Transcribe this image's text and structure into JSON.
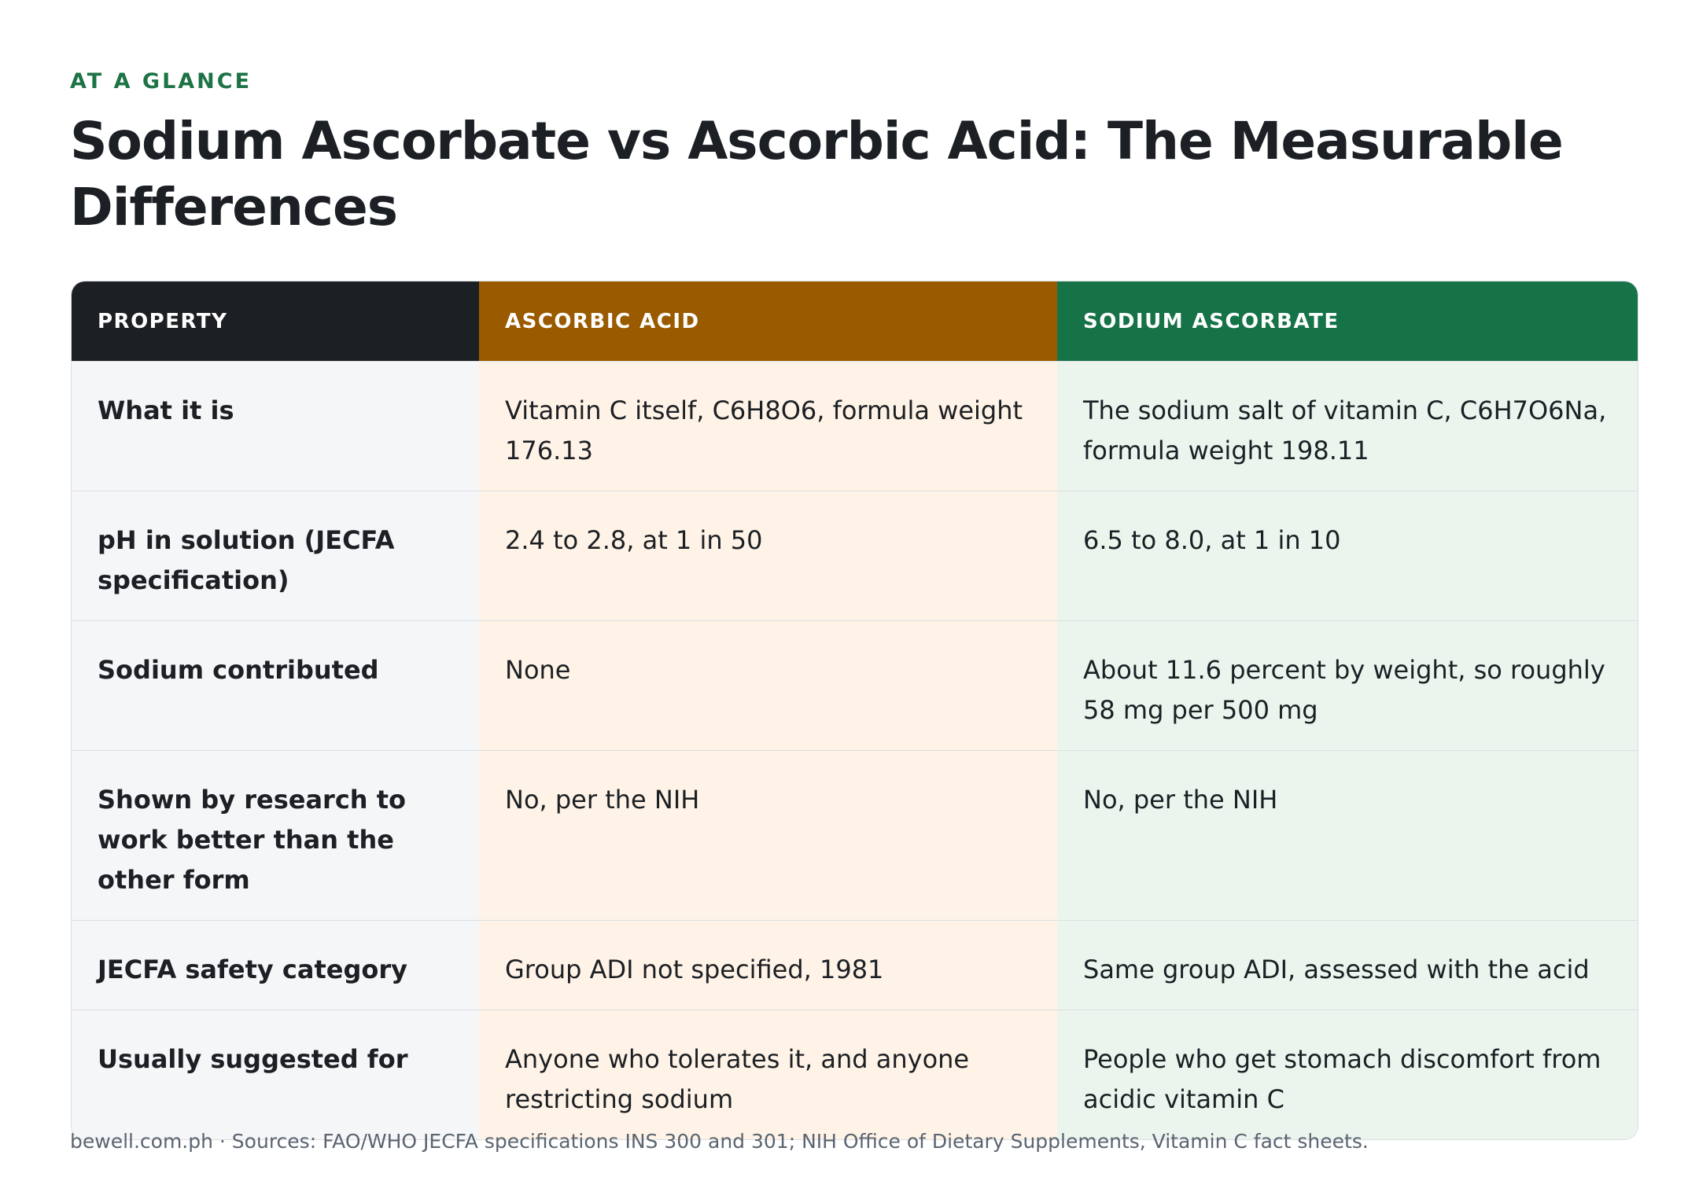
{
  "header": {
    "eyebrow": "AT A GLANCE",
    "title": "Sodium Ascorbate vs Ascorbic Acid: The Measurable Differences"
  },
  "table": {
    "columns": [
      "PROPERTY",
      "ASCORBIC ACID",
      "SODIUM ASCORBATE"
    ],
    "rows": [
      [
        "What it is",
        "Vitamin C itself, C6H8O6, formula weight 176.13",
        "The sodium salt of vitamin C, C6H7O6Na, formula weight 198.11"
      ],
      [
        "pH in solution (JECFA specification)",
        "2.4 to 2.8, at 1 in 50",
        "6.5 to 8.0, at 1 in 10"
      ],
      [
        "Sodium contributed",
        "None",
        "About 11.6 percent by weight, so roughly 58 mg per 500 mg"
      ],
      [
        "Shown by research to work better than the other form",
        "No, per the NIH",
        "No, per the NIH"
      ],
      [
        "JECFA safety category",
        "Group ADI not specified, 1981",
        "Same group ADI, assessed with the acid"
      ],
      [
        "Usually suggested for",
        "Anyone who tolerates it, and anyone restricting sodium",
        "People who get stomach discomfort from acidic vitamin C"
      ]
    ]
  },
  "footer": "bewell.com.ph · Sources: FAO/WHO JECFA specifications INS 300 and 301; NIH Office of Dietary Supplements, Vitamin C fact sheets."
}
